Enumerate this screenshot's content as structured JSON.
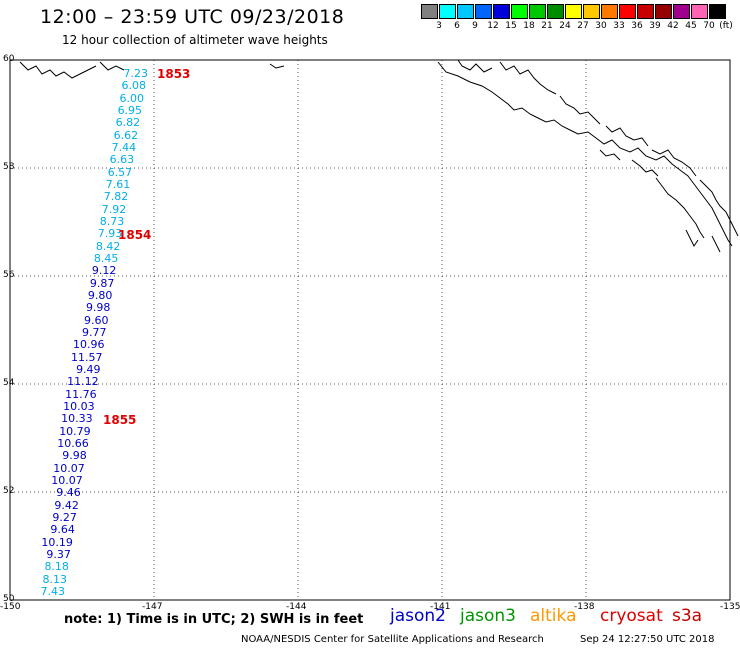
{
  "title": "12:00 – 23:59 UTC 09/23/2018",
  "subtitle": "12 hour collection of altimeter wave heights",
  "legend": {
    "unit": "(ft)",
    "bins": [
      {
        "label": "",
        "color": "#808080"
      },
      {
        "label": "3",
        "color": "#00ffff"
      },
      {
        "label": "6",
        "color": "#00c8ff"
      },
      {
        "label": "9",
        "color": "#0064ff"
      },
      {
        "label": "12",
        "color": "#0000dc"
      },
      {
        "label": "15",
        "color": "#00ff00"
      },
      {
        "label": "18",
        "color": "#00c800"
      },
      {
        "label": "21",
        "color": "#008c00"
      },
      {
        "label": "24",
        "color": "#ffff00"
      },
      {
        "label": "27",
        "color": "#ffc800"
      },
      {
        "label": "30",
        "color": "#ff7800"
      },
      {
        "label": "33",
        "color": "#ff0000"
      },
      {
        "label": "36",
        "color": "#c80000"
      },
      {
        "label": "39",
        "color": "#960000"
      },
      {
        "label": "42",
        "color": "#a0008c"
      },
      {
        "label": "45",
        "color": "#ff64b4"
      },
      {
        "label": "70",
        "color": "#000000"
      }
    ]
  },
  "map": {
    "lat_labels": [
      "60",
      "58",
      "56",
      "54",
      "52",
      "50"
    ],
    "lon_labels": [
      "-150",
      "-147",
      "-144",
      "-141",
      "-138",
      "-135"
    ]
  },
  "passes": [
    {
      "label": "1853",
      "lat": 59.8
    },
    {
      "label": "1854",
      "lat": 56.8
    },
    {
      "label": "1855",
      "lat": 53.9
    }
  ],
  "wave_heights_ft": [
    "7.23",
    "6.08",
    "6.00",
    "6.95",
    "6.82",
    "6.62",
    "7.44",
    "6.63",
    "6.57",
    "7.61",
    "7.82",
    "7.92",
    "8.73",
    "7.93",
    "8.42",
    "8.45",
    "9.12",
    "9.87",
    "9.80",
    "9.98",
    "9.60",
    "9.77",
    "10.96",
    "11.57",
    "9.49",
    "11.12",
    "11.76",
    "10.03",
    "10.33",
    "10.79",
    "10.66",
    "9.98",
    "10.07",
    "10.07",
    "9.46",
    "9.42",
    "9.27",
    "9.64",
    "10.19",
    "9.37",
    "8.18",
    "8.13",
    "7.43"
  ],
  "note": "note:  1) Time is in UTC;  2) SWH is in feet",
  "satellites": [
    {
      "name": "jason2",
      "color": "#0000c8"
    },
    {
      "name": "jason3",
      "color": "#009600"
    },
    {
      "name": "altika",
      "color": "#ff9600"
    },
    {
      "name": "cryosat",
      "color": "#e00000"
    },
    {
      "name": "s3a",
      "color": "#c80000"
    }
  ],
  "credit": "NOAA/NESDIS Center for Satellite Applications and Research",
  "timestamp": "Sep 24 12:27:50 UTC 2018"
}
